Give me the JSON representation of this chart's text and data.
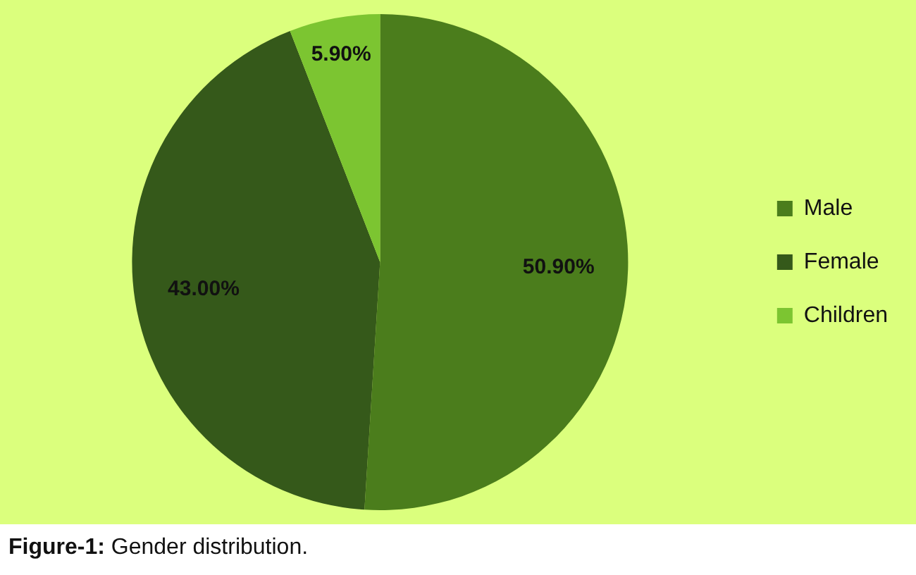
{
  "chart_data": {
    "type": "pie",
    "categories": [
      "Male",
      "Female",
      "Children"
    ],
    "values": [
      50.9,
      43.0,
      5.9
    ],
    "value_labels": [
      "50.90%",
      "43.00%",
      "5.90%"
    ],
    "colors": [
      "#4b7d1c",
      "#35591a",
      "#7cc531"
    ],
    "legend": "right",
    "annotations": [
      "Figure-1: Gender distribution."
    ]
  }
}
